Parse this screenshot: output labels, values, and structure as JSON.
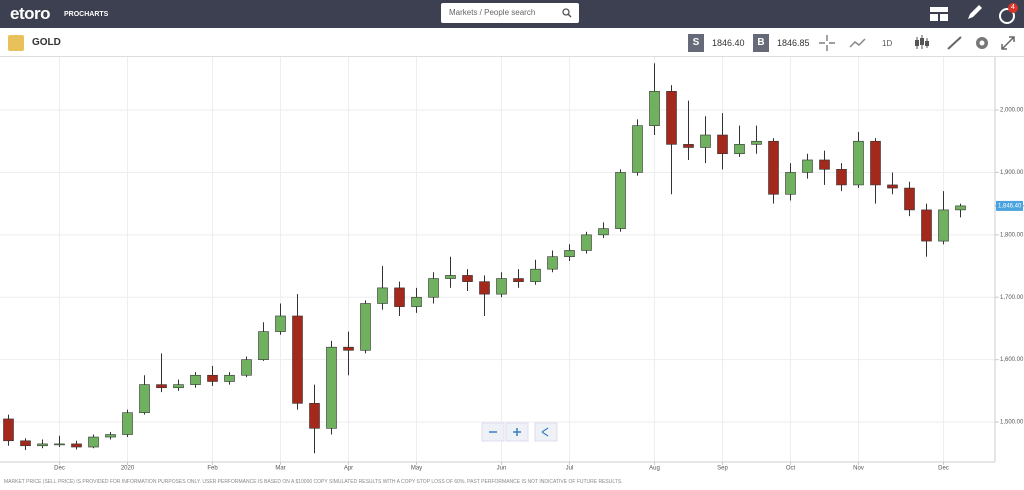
{
  "header": {
    "logo": "etoro",
    "product": "PROCHARTS",
    "search_placeholder": "Markets / People search",
    "notification_count": "4"
  },
  "toolbar": {
    "instrument": "GOLD",
    "sell_label": "S",
    "sell_price": "1846.40",
    "buy_label": "B",
    "buy_price": "1846.85",
    "timeframe": "1D"
  },
  "chart_data": {
    "type": "candlestick",
    "categories": [
      null,
      null,
      null,
      "Dec",
      null,
      null,
      null,
      "2020",
      null,
      null,
      null,
      null,
      "Feb",
      null,
      null,
      null,
      "Mar",
      null,
      null,
      null,
      "Apr",
      null,
      null,
      null,
      "May",
      null,
      null,
      null,
      null,
      "Jun",
      null,
      null,
      null,
      "Jul",
      null,
      null,
      null,
      null,
      "Aug",
      null,
      null,
      null,
      "Sep",
      null,
      null,
      null,
      "Oct",
      null,
      null,
      null,
      "Nov",
      null,
      null,
      null,
      null,
      "Dec",
      null
    ],
    "open": [
      1505,
      1470,
      1462,
      1465,
      1465,
      1460,
      1476,
      1480,
      1515,
      1560,
      1555,
      1560,
      1575,
      1565,
      1575,
      1600,
      1645,
      1670,
      1530,
      1490,
      1620,
      1615,
      1690,
      1715,
      1685,
      1700,
      1730,
      1735,
      1725,
      1705,
      1730,
      1725,
      1745,
      1765,
      1775,
      1800,
      1810,
      1900,
      1975,
      2030,
      1945,
      1940,
      1960,
      1930,
      1945,
      1950,
      1865,
      1900,
      1920,
      1905,
      1880,
      1950,
      1880,
      1875,
      1840,
      1790,
      1840
    ],
    "high": [
      1512,
      1474,
      1472,
      1478,
      1470,
      1480,
      1484,
      1520,
      1575,
      1610,
      1568,
      1580,
      1590,
      1580,
      1605,
      1660,
      1690,
      1705,
      1560,
      1630,
      1645,
      1695,
      1750,
      1725,
      1715,
      1740,
      1765,
      1745,
      1735,
      1740,
      1745,
      1760,
      1775,
      1785,
      1805,
      1820,
      1905,
      1985,
      2075,
      2040,
      2015,
      1990,
      1995,
      1975,
      1975,
      1955,
      1915,
      1930,
      1935,
      1915,
      1965,
      1955,
      1900,
      1885,
      1850,
      1870,
      1850
    ],
    "low": [
      1462,
      1455,
      1458,
      1460,
      1456,
      1458,
      1472,
      1476,
      1512,
      1548,
      1550,
      1555,
      1558,
      1560,
      1572,
      1598,
      1640,
      1520,
      1450,
      1480,
      1575,
      1610,
      1680,
      1670,
      1675,
      1690,
      1715,
      1710,
      1670,
      1700,
      1715,
      1720,
      1740,
      1758,
      1770,
      1795,
      1805,
      1895,
      1960,
      1865,
      1920,
      1915,
      1905,
      1925,
      1930,
      1850,
      1855,
      1890,
      1880,
      1870,
      1875,
      1850,
      1865,
      1830,
      1765,
      1785,
      1828
    ],
    "close": [
      1470,
      1462,
      1465,
      1465,
      1460,
      1476,
      1480,
      1515,
      1560,
      1555,
      1560,
      1575,
      1565,
      1575,
      1600,
      1645,
      1670,
      1530,
      1490,
      1620,
      1615,
      1690,
      1715,
      1685,
      1700,
      1730,
      1735,
      1725,
      1705,
      1730,
      1725,
      1745,
      1765,
      1775,
      1800,
      1810,
      1900,
      1975,
      2030,
      1945,
      1940,
      1960,
      1930,
      1945,
      1950,
      1865,
      1900,
      1920,
      1905,
      1880,
      1950,
      1880,
      1875,
      1840,
      1790,
      1840,
      1846.4
    ],
    "up_color": "#6fb15f",
    "down_color": "#a3291c",
    "ylim": [
      1436,
      2085
    ],
    "yticks": [
      {
        "value": 1500,
        "label": "1,500.00"
      },
      {
        "value": 1600,
        "label": "1,600.00"
      },
      {
        "value": 1700,
        "label": "1,700.00"
      },
      {
        "value": 1800,
        "label": "1,800.00"
      },
      {
        "value": 1900,
        "label": "1,900.00"
      },
      {
        "value": 2000,
        "label": "2,000.00"
      }
    ],
    "grid": true,
    "current_price": {
      "value": 1846.4,
      "label": "1,846.40"
    }
  },
  "footer": {
    "disclaimer": "MARKET PRICE (SELL PRICE) IS PROVIDED FOR INFORMATION PURPOSES ONLY. USER PERFORMANCE IS BASED ON A $10000 COPY SIMULATED RESULTS WITH A COPY STOP LOSS OF 60%. PAST PERFORMANCE IS NOT INDICATIVE OF FUTURE RESULTS."
  }
}
